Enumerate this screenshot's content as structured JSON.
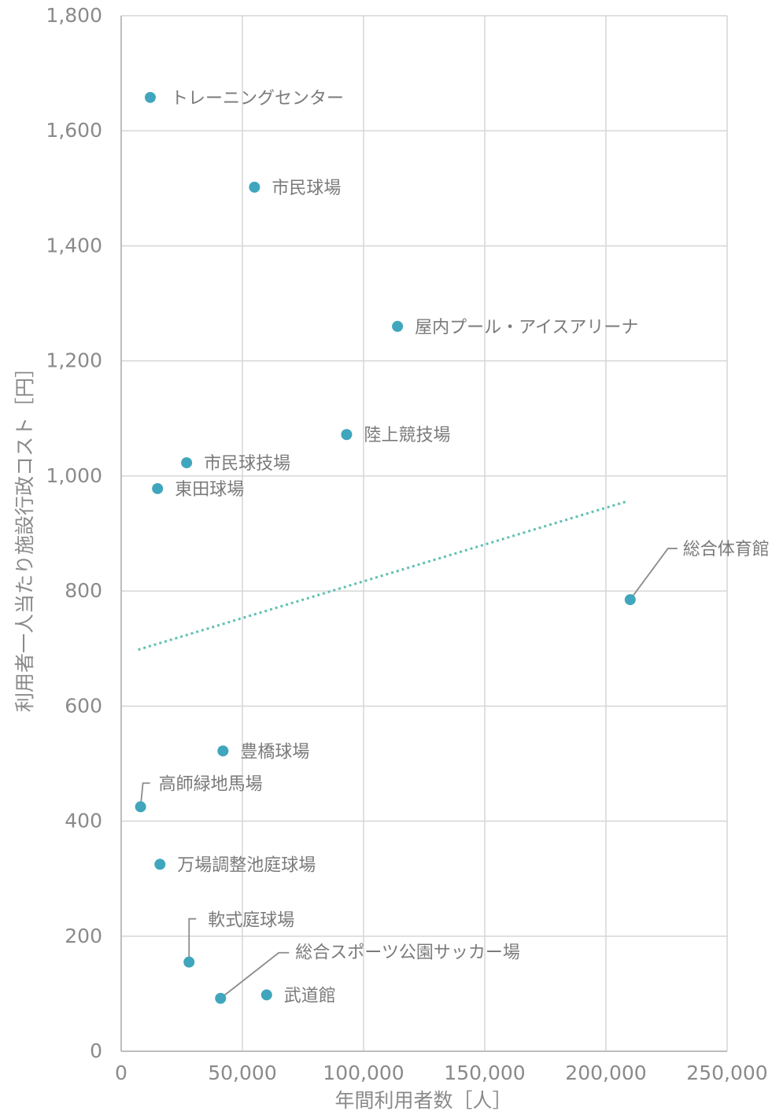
{
  "chart_data": {
    "type": "scatter",
    "title": "",
    "xlabel": "年間利用者数［人］",
    "ylabel": "利用者一人当たり施設行政コスト［円］",
    "xlim": [
      0,
      250000
    ],
    "ylim": [
      0,
      1800
    ],
    "grid": true,
    "x_ticks": [
      {
        "value": 0,
        "label": "0"
      },
      {
        "value": 50000,
        "label": "50,000"
      },
      {
        "value": 100000,
        "label": "100,000"
      },
      {
        "value": 150000,
        "label": "150,000"
      },
      {
        "value": 200000,
        "label": "200,000"
      },
      {
        "value": 250000,
        "label": "250,000"
      }
    ],
    "y_ticks": [
      {
        "value": 0,
        "label": "0"
      },
      {
        "value": 200,
        "label": "200"
      },
      {
        "value": 400,
        "label": "400"
      },
      {
        "value": 600,
        "label": "600"
      },
      {
        "value": 800,
        "label": "800"
      },
      {
        "value": 1000,
        "label": "1,000"
      },
      {
        "value": 1200,
        "label": "1,200"
      },
      {
        "value": 1400,
        "label": "1,400"
      },
      {
        "value": 1600,
        "label": "1,600"
      },
      {
        "value": 1800,
        "label": "1,800"
      }
    ],
    "points": [
      {
        "label": "トレーニングセンター",
        "x": 12000,
        "y": 1658
      },
      {
        "label": "市民球場",
        "x": 55000,
        "y": 1502
      },
      {
        "label": "屋内プール・アイスアリーナ",
        "x": 114000,
        "y": 1260
      },
      {
        "label": "陸上競技場",
        "x": 93000,
        "y": 1072
      },
      {
        "label": "市民球技場",
        "x": 27000,
        "y": 1023
      },
      {
        "label": "東田球場",
        "x": 15000,
        "y": 978
      },
      {
        "label": "総合体育館",
        "x": 210000,
        "y": 785
      },
      {
        "label": "豊橋球場",
        "x": 42000,
        "y": 522
      },
      {
        "label": "高師緑地馬場",
        "x": 8000,
        "y": 425
      },
      {
        "label": "万場調整池庭球場",
        "x": 16000,
        "y": 325
      },
      {
        "label": "軟式庭球場",
        "x": 28000,
        "y": 155
      },
      {
        "label": "総合スポーツ公園サッカー場",
        "x": 41000,
        "y": 92
      },
      {
        "label": "武道館",
        "x": 60000,
        "y": 98
      }
    ],
    "trendline": {
      "style": "dotted",
      "x": [
        7000,
        208000
      ],
      "y": [
        698,
        955
      ]
    },
    "colors": {
      "marker": "#3fa6bd",
      "trendline": "#5fc0b0",
      "grid": "#d6d6d6",
      "axis": "#bdbdbd",
      "text": "#8a8a8a"
    }
  }
}
